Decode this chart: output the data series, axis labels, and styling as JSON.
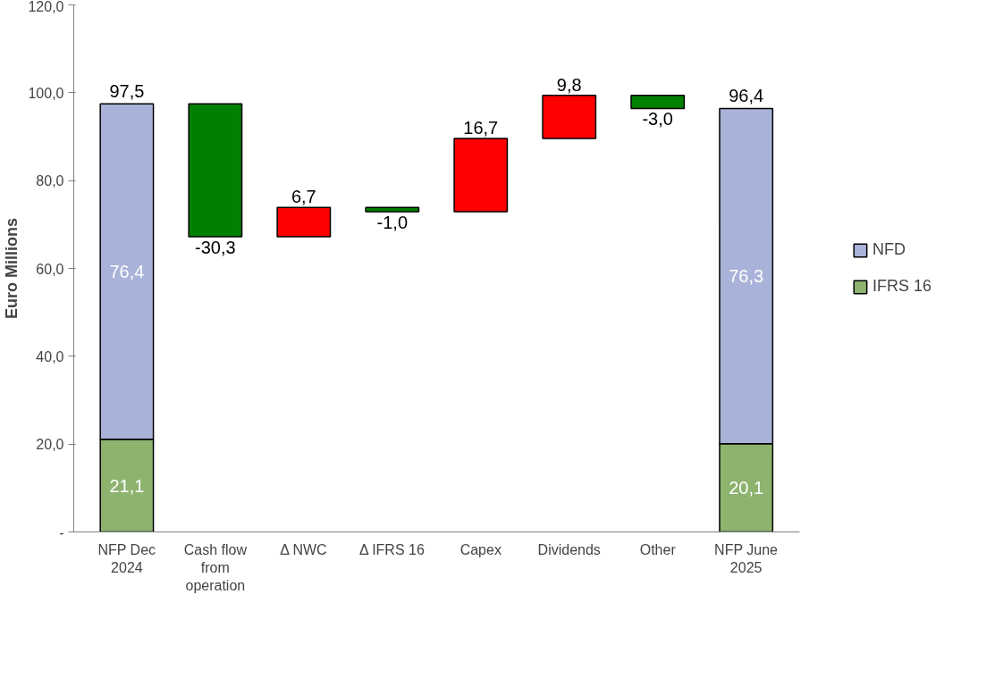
{
  "chart_data": {
    "type": "bar",
    "stacked": true,
    "ylabel": "Euro Millions",
    "categories": [
      "NFP Dec\n2024",
      "Cash flow\nfrom\noperation",
      "Δ NWC",
      "Δ IFRS 16",
      "Capex",
      "Dividends",
      "Other",
      "NFP June\n2025"
    ],
    "series": [
      {
        "name": "IFRS 16",
        "color": "#8db36f",
        "values": [
          21.1,
          null,
          null,
          null,
          null,
          null,
          null,
          20.1
        ],
        "value_labels": [
          "21,1",
          null,
          null,
          null,
          null,
          null,
          null,
          "20,1"
        ]
      },
      {
        "name": "NFD",
        "color": "#a9b2d8",
        "values": [
          76.4,
          null,
          null,
          null,
          null,
          null,
          null,
          76.3
        ],
        "value_labels": [
          "76,4",
          null,
          null,
          null,
          null,
          null,
          null,
          "76,3"
        ]
      },
      {
        "colors": [
          null,
          "#008000",
          "#ff0000",
          "#008000",
          "#ff0000",
          "#ff0000",
          "#008000",
          null
        ],
        "values": [
          null,
          -30.3,
          6.7,
          -1.0,
          16.7,
          9.8,
          -3.0,
          null
        ],
        "base": [
          null,
          97.5,
          67.2,
          73.9,
          72.9,
          89.6,
          99.4,
          null
        ],
        "value_labels": [
          null,
          "-30,3",
          "6,7",
          "-1,0",
          "16,7",
          "9,8",
          "-3,0",
          null
        ]
      }
    ],
    "totals": [
      "97,5",
      null,
      null,
      null,
      null,
      null,
      null,
      "96,4"
    ],
    "ylim": [
      0,
      120
    ],
    "yticks": [
      {
        "value": 0,
        "label": "-"
      },
      {
        "value": 20,
        "label": "20,0"
      },
      {
        "value": 40,
        "label": "40,0"
      },
      {
        "value": 60,
        "label": "60,0"
      },
      {
        "value": 80,
        "label": "80,0"
      },
      {
        "value": 100,
        "label": "100,0"
      },
      {
        "value": 120,
        "label": "120,0"
      }
    ],
    "legend": "right",
    "grid": false
  }
}
